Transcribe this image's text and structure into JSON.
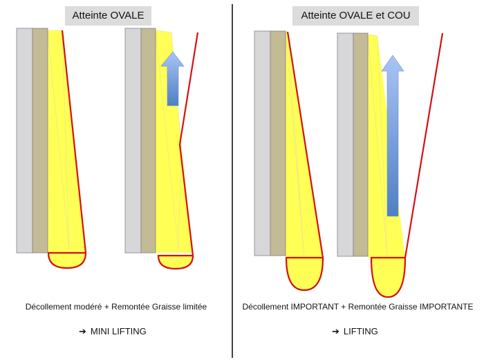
{
  "left_panel": {
    "title": "Atteinte OVALE",
    "caption": "Décollement modéré + Remontée Graisse limitée",
    "verdict_arrow": "➔",
    "verdict": "MINI LIFTING"
  },
  "right_panel": {
    "title": "Atteinte OVALE et COU",
    "caption": "Décollement IMPORTANT  + Remontée Graisse IMPORTANTE",
    "verdict_arrow": "➔",
    "verdict": "LIFTING"
  },
  "colors": {
    "bone": "#d7d7d9",
    "muscle": "#c3ba96",
    "fat": "#ffff55",
    "skin_line": "#d60f0f",
    "arrow_top": "#a9c4f5",
    "arrow_bottom": "#4f7fc4",
    "divider": "#111111",
    "title_bg": "#dcdcdc"
  }
}
